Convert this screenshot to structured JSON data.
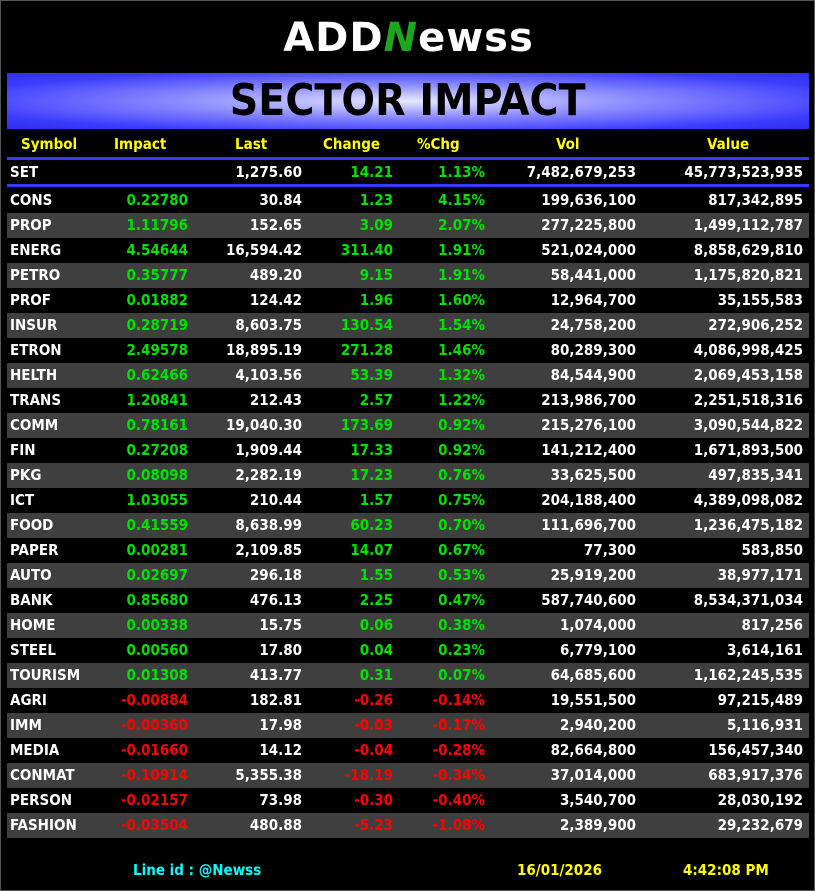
{
  "logo": {
    "part1": "ADD",
    "part2": "N",
    "part3": "ewss"
  },
  "title": "SECTOR IMPACT",
  "headers": [
    "Symbol",
    "Impact",
    "Last",
    "Change",
    "%Chg",
    "Vol",
    "Value"
  ],
  "index": {
    "symbol": "SET",
    "impact": "",
    "last": "1,275.60",
    "change": "14.21",
    "pct": "1.13%",
    "vol": "7,482,679,253",
    "value": "45,773,523,935"
  },
  "colors": {
    "up": "#00e000",
    "down": "#ff0000",
    "header": "#ffff00",
    "footer_id": "#00ffff",
    "banner": "#3c3cff"
  },
  "rows": [
    {
      "symbol": "CONS",
      "impact": "0.22780",
      "last": "30.84",
      "change": "1.23",
      "pct": "4.15%",
      "vol": "199,636,100",
      "value": "817,342,895"
    },
    {
      "symbol": "PROP",
      "impact": "1.11796",
      "last": "152.65",
      "change": "3.09",
      "pct": "2.07%",
      "vol": "277,225,800",
      "value": "1,499,112,787"
    },
    {
      "symbol": "ENERG",
      "impact": "4.54644",
      "last": "16,594.42",
      "change": "311.40",
      "pct": "1.91%",
      "vol": "521,024,000",
      "value": "8,858,629,810"
    },
    {
      "symbol": "PETRO",
      "impact": "0.35777",
      "last": "489.20",
      "change": "9.15",
      "pct": "1.91%",
      "vol": "58,441,000",
      "value": "1,175,820,821"
    },
    {
      "symbol": "PROF",
      "impact": "0.01882",
      "last": "124.42",
      "change": "1.96",
      "pct": "1.60%",
      "vol": "12,964,700",
      "value": "35,155,583"
    },
    {
      "symbol": "INSUR",
      "impact": "0.28719",
      "last": "8,603.75",
      "change": "130.54",
      "pct": "1.54%",
      "vol": "24,758,200",
      "value": "272,906,252"
    },
    {
      "symbol": "ETRON",
      "impact": "2.49578",
      "last": "18,895.19",
      "change": "271.28",
      "pct": "1.46%",
      "vol": "80,289,300",
      "value": "4,086,998,425"
    },
    {
      "symbol": "HELTH",
      "impact": "0.62466",
      "last": "4,103.56",
      "change": "53.39",
      "pct": "1.32%",
      "vol": "84,544,900",
      "value": "2,069,453,158"
    },
    {
      "symbol": "TRANS",
      "impact": "1.20841",
      "last": "212.43",
      "change": "2.57",
      "pct": "1.22%",
      "vol": "213,986,700",
      "value": "2,251,518,316"
    },
    {
      "symbol": "COMM",
      "impact": "0.78161",
      "last": "19,040.30",
      "change": "173.69",
      "pct": "0.92%",
      "vol": "215,276,100",
      "value": "3,090,544,822"
    },
    {
      "symbol": "FIN",
      "impact": "0.27208",
      "last": "1,909.44",
      "change": "17.33",
      "pct": "0.92%",
      "vol": "141,212,400",
      "value": "1,671,893,500"
    },
    {
      "symbol": "PKG",
      "impact": "0.08098",
      "last": "2,282.19",
      "change": "17.23",
      "pct": "0.76%",
      "vol": "33,625,500",
      "value": "497,835,341"
    },
    {
      "symbol": "ICT",
      "impact": "1.03055",
      "last": "210.44",
      "change": "1.57",
      "pct": "0.75%",
      "vol": "204,188,400",
      "value": "4,389,098,082"
    },
    {
      "symbol": "FOOD",
      "impact": "0.41559",
      "last": "8,638.99",
      "change": "60.23",
      "pct": "0.70%",
      "vol": "111,696,700",
      "value": "1,236,475,182"
    },
    {
      "symbol": "PAPER",
      "impact": "0.00281",
      "last": "2,109.85",
      "change": "14.07",
      "pct": "0.67%",
      "vol": "77,300",
      "value": "583,850"
    },
    {
      "symbol": "AUTO",
      "impact": "0.02697",
      "last": "296.18",
      "change": "1.55",
      "pct": "0.53%",
      "vol": "25,919,200",
      "value": "38,977,171"
    },
    {
      "symbol": "BANK",
      "impact": "0.85680",
      "last": "476.13",
      "change": "2.25",
      "pct": "0.47%",
      "vol": "587,740,600",
      "value": "8,534,371,034"
    },
    {
      "symbol": "HOME",
      "impact": "0.00338",
      "last": "15.75",
      "change": "0.06",
      "pct": "0.38%",
      "vol": "1,074,000",
      "value": "817,256"
    },
    {
      "symbol": "STEEL",
      "impact": "0.00560",
      "last": "17.80",
      "change": "0.04",
      "pct": "0.23%",
      "vol": "6,779,100",
      "value": "3,614,161"
    },
    {
      "symbol": "TOURISM",
      "impact": "0.01308",
      "last": "413.77",
      "change": "0.31",
      "pct": "0.07%",
      "vol": "64,685,600",
      "value": "1,162,245,535"
    },
    {
      "symbol": "AGRI",
      "impact": "-0.00884",
      "last": "182.81",
      "change": "-0.26",
      "pct": "-0.14%",
      "vol": "19,551,500",
      "value": "97,215,489"
    },
    {
      "symbol": "IMM",
      "impact": "-0.00360",
      "last": "17.98",
      "change": "-0.03",
      "pct": "-0.17%",
      "vol": "2,940,200",
      "value": "5,116,931"
    },
    {
      "symbol": "MEDIA",
      "impact": "-0.01660",
      "last": "14.12",
      "change": "-0.04",
      "pct": "-0.28%",
      "vol": "82,664,800",
      "value": "156,457,340"
    },
    {
      "symbol": "CONMAT",
      "impact": "-0.10914",
      "last": "5,355.38",
      "change": "-18.19",
      "pct": "-0.34%",
      "vol": "37,014,000",
      "value": "683,917,376"
    },
    {
      "symbol": "PERSON",
      "impact": "-0.02157",
      "last": "73.98",
      "change": "-0.30",
      "pct": "-0.40%",
      "vol": "3,540,700",
      "value": "28,030,192"
    },
    {
      "symbol": "FASHION",
      "impact": "-0.03504",
      "last": "480.88",
      "change": "-5.23",
      "pct": "-1.08%",
      "vol": "2,389,900",
      "value": "29,232,679"
    }
  ],
  "footer": {
    "line_id": "Line id  : @Newss",
    "date": "16/01/2026",
    "time": "4:42:08 PM"
  }
}
